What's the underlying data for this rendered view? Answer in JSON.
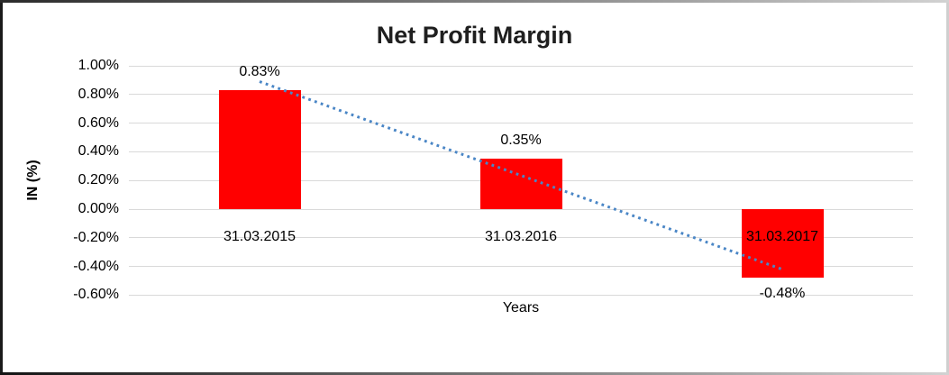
{
  "chart_data": {
    "type": "bar",
    "title": "Net Profit Margin",
    "xlabel": "Years",
    "ylabel": "IN (%)",
    "categories": [
      "31.03.2015",
      "31.03.2016",
      "31.03.2017"
    ],
    "values": [
      0.83,
      0.35,
      -0.48
    ],
    "value_labels": [
      "0.83%",
      "0.35%",
      "-0.48%"
    ],
    "value_unit": "%",
    "bar_color": "#FF0000",
    "ylim": [
      -0.6,
      1.0
    ],
    "y_ticks": [
      {
        "value": 1.0,
        "label": "1.00%"
      },
      {
        "value": 0.8,
        "label": "0.80%"
      },
      {
        "value": 0.6,
        "label": "0.60%"
      },
      {
        "value": 0.4,
        "label": "0.40%"
      },
      {
        "value": 0.2,
        "label": "0.20%"
      },
      {
        "value": 0.0,
        "label": "0.00%"
      },
      {
        "value": -0.2,
        "label": "-0.20%"
      },
      {
        "value": -0.4,
        "label": "-0.40%"
      },
      {
        "value": -0.6,
        "label": "-0.60%"
      }
    ],
    "grid": true,
    "gridline_color": "#D9D9D9",
    "legend_position": "none",
    "trendline": {
      "type": "linear",
      "style": "dotted",
      "color": "#4A86C6",
      "start_value": 0.89,
      "end_value": -0.42
    }
  }
}
